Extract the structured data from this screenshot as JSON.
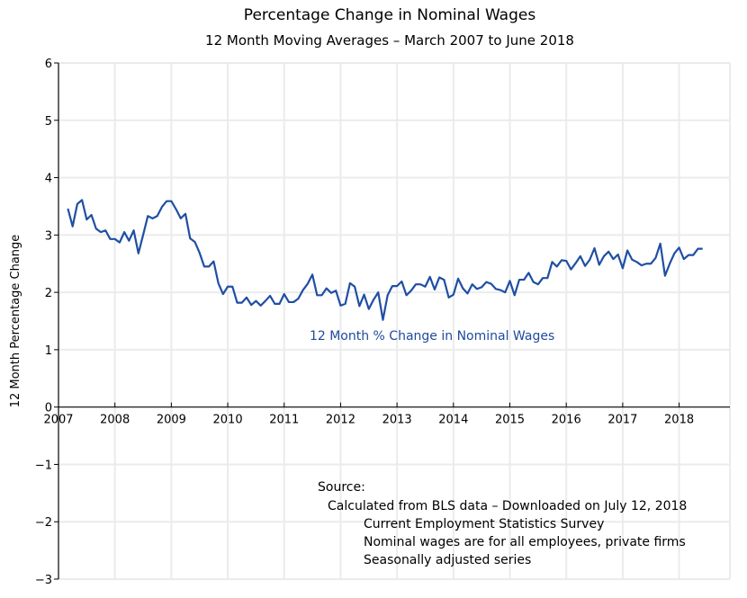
{
  "chart_data": {
    "type": "line",
    "title": "Percentage Change in Nominal Wages",
    "subtitle": "12 Month Moving Averages  –  March 2007 to June 2018",
    "xlabel": "",
    "ylabel": "12 Month Percentage Change",
    "xlim": [
      2007,
      2018.9
    ],
    "ylim": [
      -3,
      6
    ],
    "grid": true,
    "x_ticks": [
      2007,
      2008,
      2009,
      2010,
      2011,
      2012,
      2013,
      2014,
      2015,
      2016,
      2017,
      2018
    ],
    "x_tick_labels": [
      "2007",
      "2008",
      "2009",
      "2010",
      "2011",
      "2012",
      "2013",
      "2014",
      "2015",
      "2016",
      "2017",
      "2018"
    ],
    "y_ticks": [
      -3,
      -2,
      -1,
      0,
      1,
      2,
      3,
      4,
      5,
      6
    ],
    "y_tick_labels": [
      "−3",
      "−2",
      "−1",
      "0",
      "1",
      "2",
      "3",
      "4",
      "5",
      "6"
    ],
    "start": {
      "year": 2007,
      "month": 3
    },
    "series": [
      {
        "name": "12 Month % Change in Nominal Wages",
        "color": "#1f4fa3",
        "values": [
          3.46,
          3.15,
          3.54,
          3.61,
          3.27,
          3.35,
          3.11,
          3.05,
          3.08,
          2.93,
          2.93,
          2.87,
          3.05,
          2.9,
          3.08,
          2.68,
          3.0,
          3.33,
          3.29,
          3.33,
          3.49,
          3.59,
          3.59,
          3.45,
          3.29,
          3.37,
          2.94,
          2.88,
          2.69,
          2.45,
          2.45,
          2.54,
          2.16,
          1.97,
          2.1,
          2.1,
          1.82,
          1.82,
          1.91,
          1.78,
          1.85,
          1.77,
          1.85,
          1.94,
          1.8,
          1.8,
          1.97,
          1.83,
          1.83,
          1.89,
          2.04,
          2.15,
          2.31,
          1.95,
          1.95,
          2.07,
          1.99,
          2.03,
          1.77,
          1.8,
          2.16,
          2.1,
          1.76,
          1.96,
          1.71,
          1.87,
          2.0,
          1.52,
          1.95,
          2.11,
          2.11,
          2.19,
          1.95,
          2.03,
          2.14,
          2.14,
          2.1,
          2.27,
          2.05,
          2.26,
          2.22,
          1.91,
          1.96,
          2.24,
          2.07,
          1.98,
          2.14,
          2.06,
          2.09,
          2.18,
          2.15,
          2.06,
          2.04,
          2.0,
          2.2,
          1.95,
          2.22,
          2.22,
          2.34,
          2.18,
          2.14,
          2.25,
          2.25,
          2.53,
          2.45,
          2.56,
          2.55,
          2.4,
          2.51,
          2.63,
          2.46,
          2.57,
          2.77,
          2.48,
          2.63,
          2.71,
          2.58,
          2.66,
          2.42,
          2.73,
          2.57,
          2.53,
          2.47,
          2.5,
          2.5,
          2.6,
          2.85,
          2.29,
          2.5,
          2.68,
          2.78,
          2.58,
          2.65,
          2.65,
          2.76,
          2.76
        ]
      }
    ],
    "annotations": [
      {
        "text": "12 Month % Change in Nominal Wages",
        "x": 2011.45,
        "y": 1.17
      }
    ]
  },
  "source": {
    "heading": "Source:",
    "lines": [
      "Calculated from BLS data – Downloaded on July 12, 2018",
      "Current Employment Statistics Survey",
      "Nominal wages are for all employees, private firms",
      "Seasonally adjusted series"
    ]
  }
}
